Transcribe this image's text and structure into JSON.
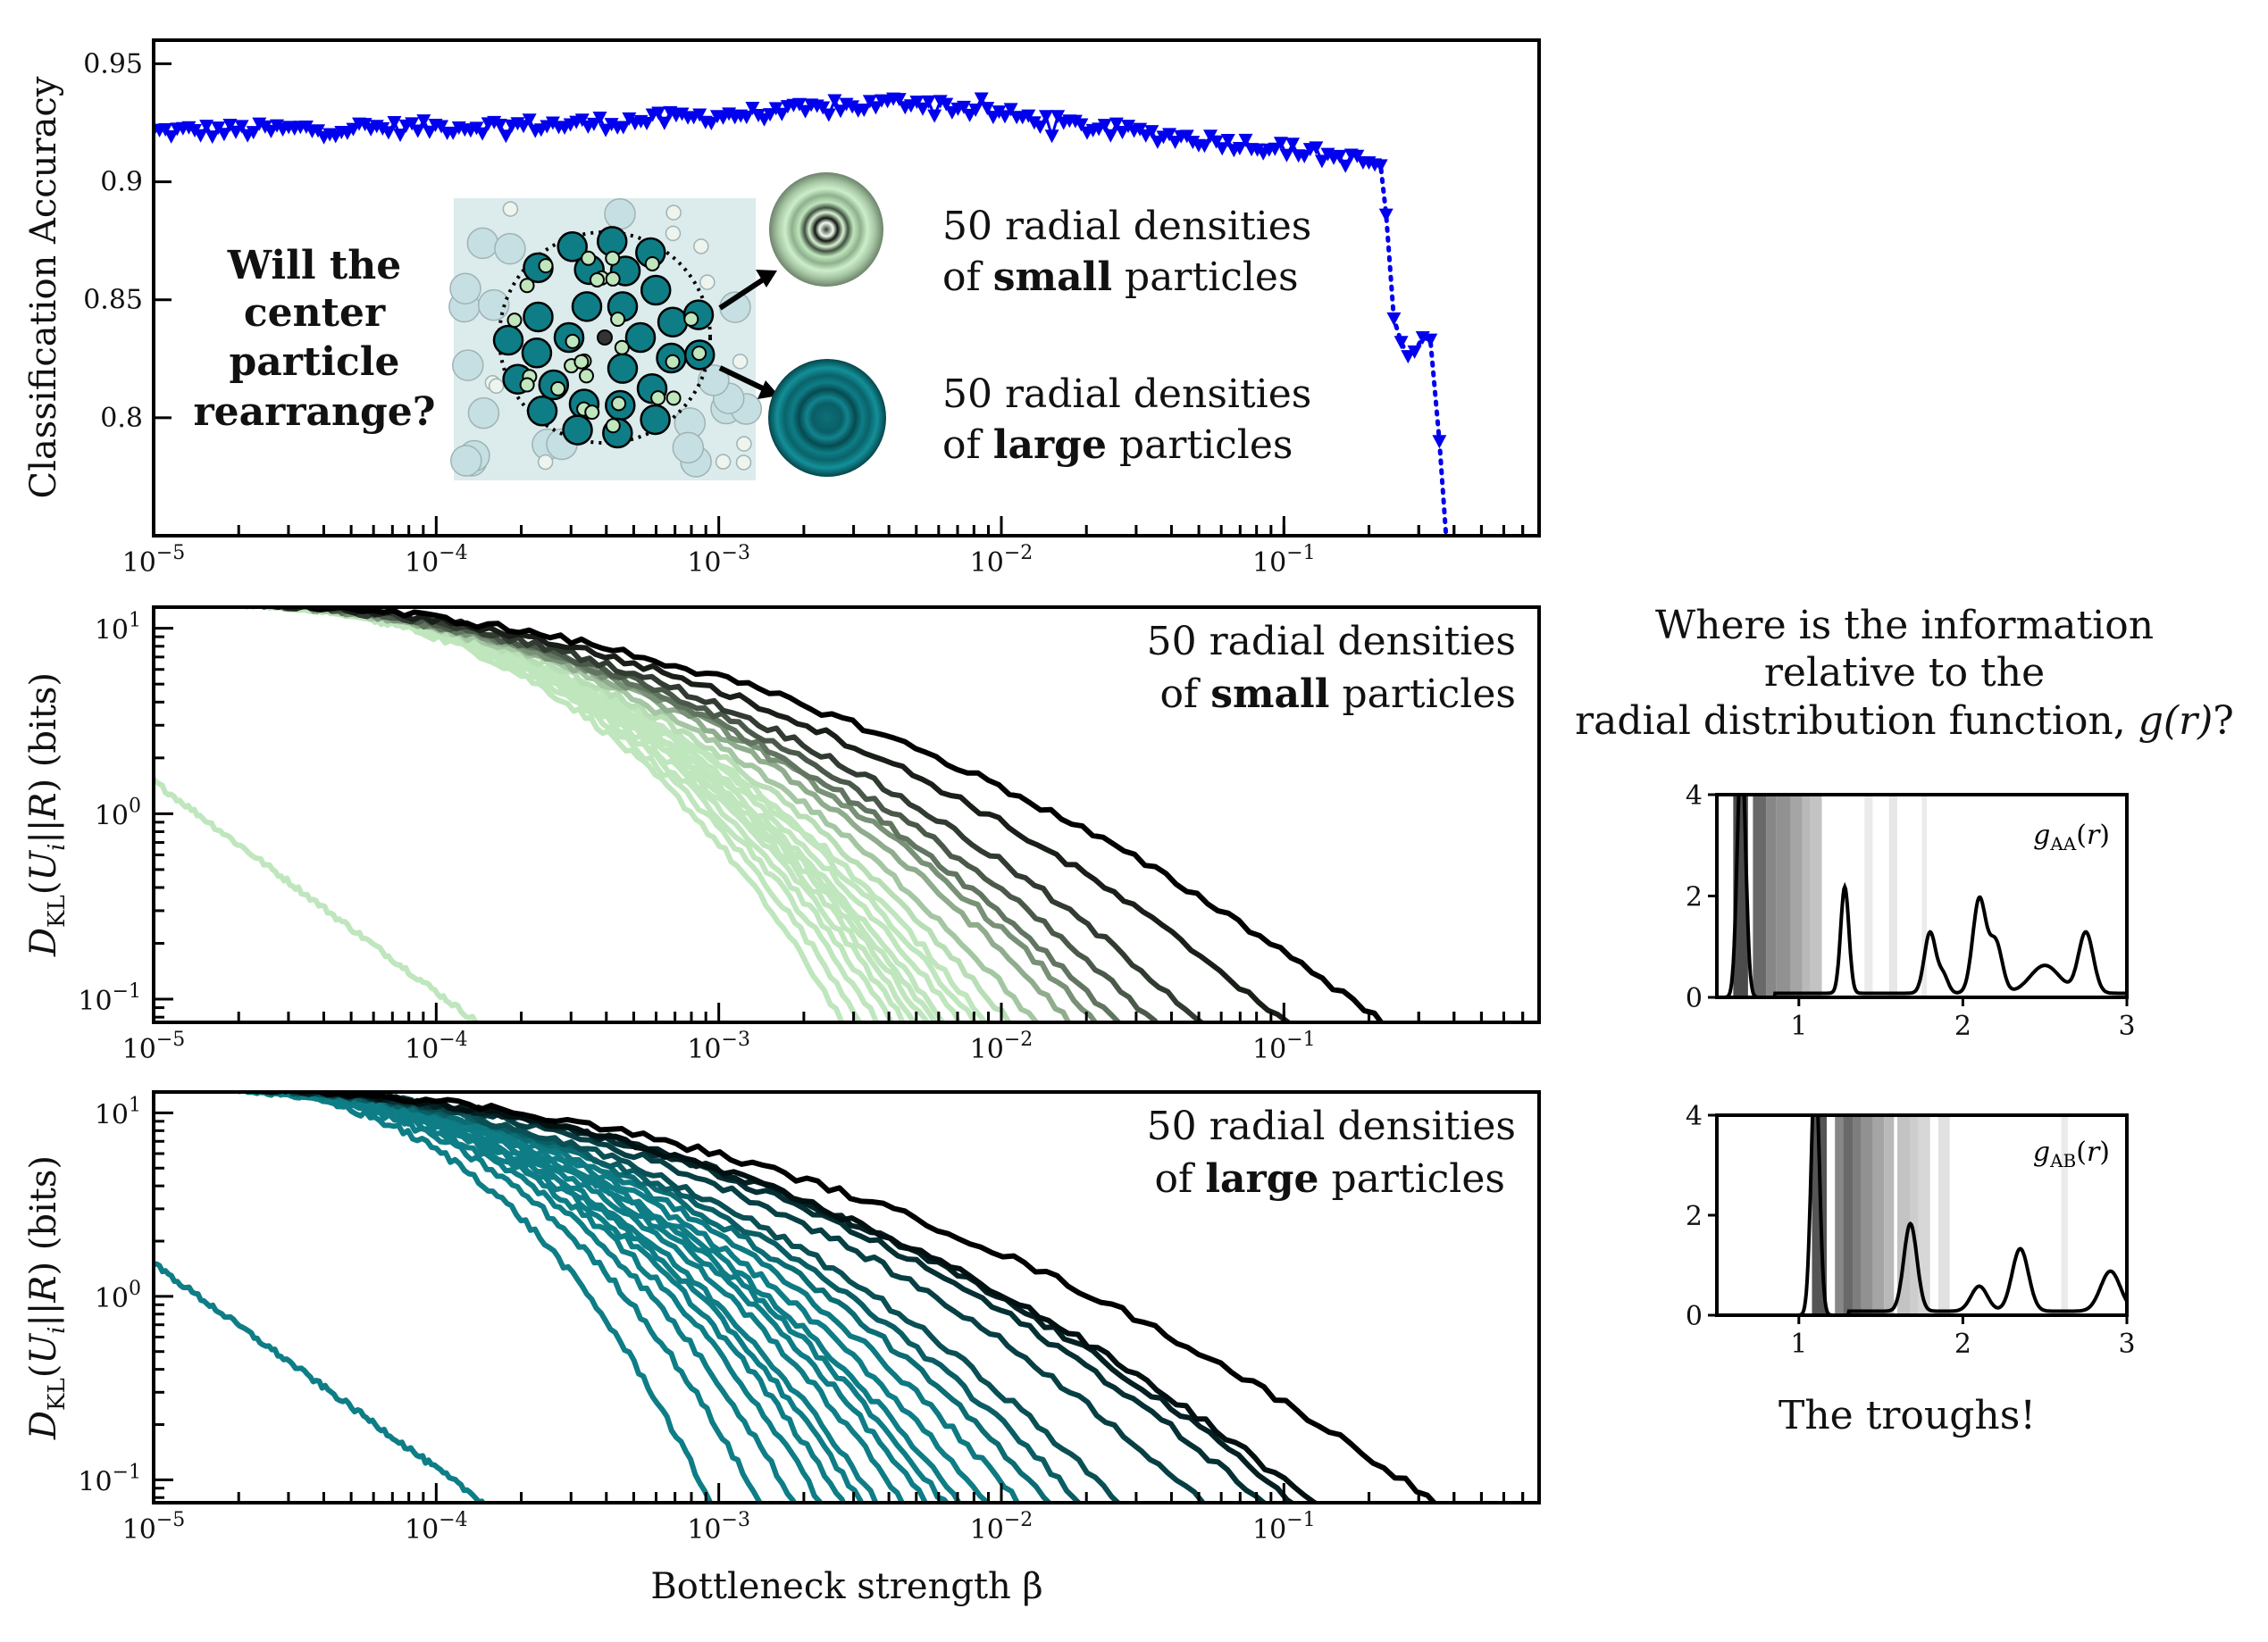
{
  "chart_data": [
    {
      "id": "accuracy",
      "type": "line",
      "xscale": "log",
      "xlim": [
        1e-05,
        0.8
      ],
      "ylim": [
        0.75,
        0.96
      ],
      "ylabel": "Classification Accuracy",
      "xticks": [
        "10^{-5}",
        "10^{-4}",
        "10^{-3}",
        "10^{-2}",
        "10^{-1}"
      ],
      "yticks": [
        0.8,
        0.85,
        0.9,
        0.95
      ],
      "ytick_labels": [
        "0.8",
        "0.85",
        "0.9",
        "0.95"
      ],
      "series_color": "#0000ee",
      "keypoints": [
        [
          1e-05,
          0.921
        ],
        [
          0.0003,
          0.924
        ],
        [
          0.002,
          0.93
        ],
        [
          0.005,
          0.934
        ],
        [
          0.02,
          0.923
        ],
        [
          0.1,
          0.914
        ],
        [
          0.22,
          0.907
        ],
        [
          0.23,
          0.886
        ],
        [
          0.25,
          0.842
        ],
        [
          0.27,
          0.832
        ],
        [
          0.32,
          0.835
        ],
        [
          0.36,
          0.79
        ],
        [
          0.38,
          0.75
        ]
      ],
      "inset": {
        "question": [
          "Will the",
          "center",
          "particle",
          "rearrange?"
        ],
        "small_line1": "50 radial densities",
        "small_line2_prefix": "of ",
        "small_line2_bold": "small",
        "small_line2_suffix": " particles",
        "large_line1": "50 radial densities",
        "large_line2_prefix": "of ",
        "large_line2_bold": "large",
        "large_line2_suffix": " particles",
        "small_color": "#bfe6bd",
        "large_color": "#0e7d86"
      }
    },
    {
      "id": "small",
      "type": "line",
      "xscale": "log",
      "yscale": "log",
      "xlim": [
        1e-05,
        0.8
      ],
      "ylim": [
        0.075,
        13
      ],
      "ylabel": "D_KL(U_i||R) (bits)",
      "xticks": [
        "10^{-5}",
        "10^{-4}",
        "10^{-3}",
        "10^{-2}",
        "10^{-1}"
      ],
      "yticks": [
        "10^{-1}",
        "10^{0}",
        "10^{1}"
      ],
      "title_line1": "50 radial densities",
      "title_line2_prefix": "of ",
      "title_line2_bold": "small",
      "title_line2_suffix": " particles",
      "color_light": "#bfe6bd",
      "color_dark": "#000000",
      "series_end_beta": [
        0.00017,
        0.003,
        0.0035,
        0.004,
        0.0045,
        0.005,
        0.0055,
        0.006,
        0.0065,
        0.007,
        0.008,
        0.009,
        0.01,
        0.012,
        0.015,
        0.02,
        0.025,
        0.03,
        0.04,
        0.06,
        0.12,
        0.27
      ]
    },
    {
      "id": "large",
      "type": "line",
      "xscale": "log",
      "yscale": "log",
      "xlim": [
        1e-05,
        0.8
      ],
      "ylim": [
        0.075,
        13
      ],
      "xlabel": "Bottleneck strength β",
      "ylabel": "D_KL(U_i||R) (bits)",
      "xticks": [
        "10^{-5}",
        "10^{-4}",
        "10^{-3}",
        "10^{-2}",
        "10^{-1}"
      ],
      "yticks": [
        "10^{-1}",
        "10^{0}",
        "10^{1}"
      ],
      "title_line1": "50 radial densities",
      "title_line2_prefix": "of ",
      "title_line2_bold": "large",
      "title_line2_suffix": " particles",
      "color_light": "#0e7d86",
      "color_dark": "#000000",
      "series_end_beta": [
        0.00018,
        0.001,
        0.0015,
        0.002,
        0.0025,
        0.003,
        0.0035,
        0.004,
        0.005,
        0.006,
        0.007,
        0.008,
        0.01,
        0.013,
        0.017,
        0.022,
        0.03,
        0.06,
        0.1,
        0.13,
        0.15,
        0.42
      ]
    },
    {
      "id": "gAA",
      "type": "line",
      "xlim": [
        0.5,
        3
      ],
      "ylim": [
        0,
        4
      ],
      "xticks": [
        1,
        2,
        3
      ],
      "yticks": [
        0,
        2,
        4
      ],
      "label": "g_AA(r)",
      "peaks": [
        [
          0.65,
          5.0,
          0.025
        ],
        [
          1.28,
          2.1,
          0.025
        ],
        [
          1.8,
          1.2,
          0.035
        ],
        [
          1.88,
          0.35,
          0.03
        ],
        [
          2.1,
          1.85,
          0.04
        ],
        [
          2.2,
          1.0,
          0.04
        ],
        [
          2.5,
          0.55,
          0.09
        ],
        [
          2.75,
          1.2,
          0.045
        ]
      ],
      "bands": [
        [
          0.6,
          0.69,
          0.9
        ],
        [
          0.72,
          0.8,
          0.75
        ],
        [
          0.8,
          0.86,
          0.6
        ],
        [
          0.86,
          0.95,
          0.55
        ],
        [
          0.95,
          1.02,
          0.45
        ],
        [
          1.02,
          1.07,
          0.35
        ],
        [
          1.07,
          1.14,
          0.3
        ],
        [
          1.4,
          1.45,
          0.1
        ],
        [
          1.55,
          1.6,
          0.12
        ],
        [
          1.75,
          1.78,
          0.1
        ]
      ]
    },
    {
      "id": "gAB",
      "type": "line",
      "xlim": [
        0.5,
        3
      ],
      "ylim": [
        0,
        4
      ],
      "xticks": [
        1,
        2,
        3
      ],
      "yticks": [
        0,
        2,
        4
      ],
      "label": "g_AB(r)",
      "peaks": [
        [
          1.1,
          5.0,
          0.025
        ],
        [
          1.68,
          1.75,
          0.04
        ],
        [
          2.1,
          0.5,
          0.05
        ],
        [
          2.35,
          1.25,
          0.05
        ],
        [
          2.9,
          0.8,
          0.06
        ]
      ],
      "bands": [
        [
          1.08,
          1.17,
          0.85
        ],
        [
          1.22,
          1.27,
          0.6
        ],
        [
          1.27,
          1.33,
          0.75
        ],
        [
          1.33,
          1.38,
          0.65
        ],
        [
          1.38,
          1.45,
          0.55
        ],
        [
          1.45,
          1.52,
          0.45
        ],
        [
          1.52,
          1.58,
          0.35
        ],
        [
          1.6,
          1.68,
          0.3
        ],
        [
          1.68,
          1.73,
          0.25
        ],
        [
          1.73,
          1.8,
          0.2
        ],
        [
          1.85,
          1.92,
          0.15
        ],
        [
          2.6,
          2.64,
          0.1
        ]
      ]
    }
  ],
  "side_text": {
    "question_line1": "Where is the information",
    "question_line2": "relative to the",
    "question_line3_prefix": "radial distribution function, ",
    "question_line3_math": "g(r)",
    "question_line3_suffix": "?",
    "answer": "The troughs!"
  }
}
